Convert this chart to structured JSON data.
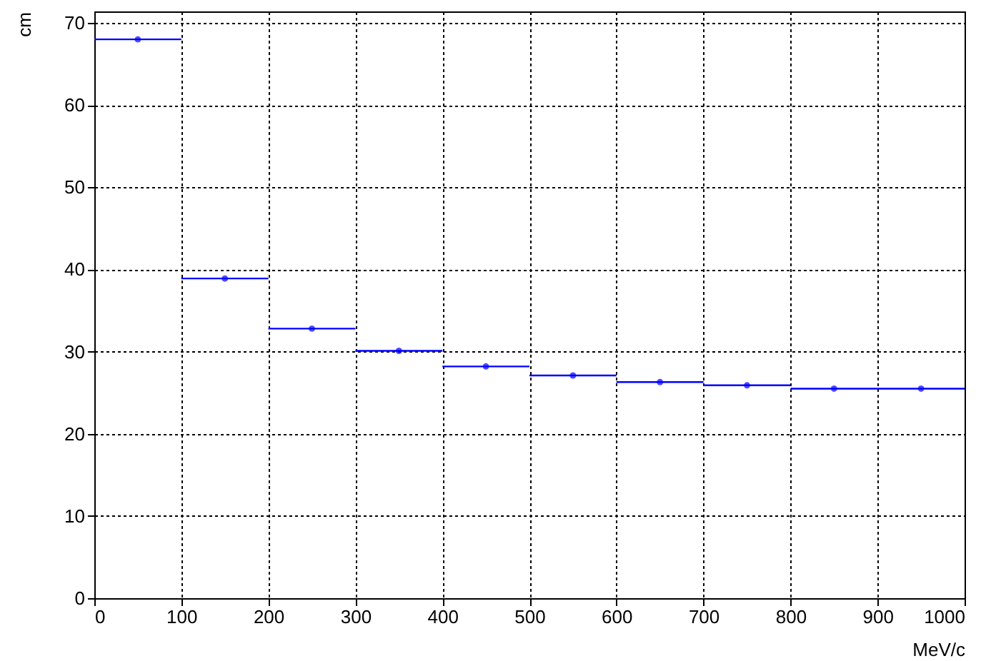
{
  "chart_data": {
    "type": "scatter",
    "xlabel": "MeV/c",
    "ylabel": "cm",
    "x": [
      50,
      150,
      250,
      350,
      450,
      550,
      650,
      750,
      850,
      950
    ],
    "values": [
      68,
      38.9,
      32.8,
      30.1,
      28.2,
      27.1,
      26.3,
      25.9,
      25.5,
      25.5
    ],
    "xerrors": [
      50,
      50,
      50,
      50,
      50,
      50,
      50,
      50,
      50,
      50
    ],
    "color": "#0000ff",
    "marker": "circle",
    "grid": true,
    "xlim": [
      0,
      1000
    ],
    "xticks": [
      0,
      100,
      200,
      300,
      400,
      500,
      600,
      700,
      800,
      900,
      1000
    ],
    "ylim": [
      0,
      71.4
    ],
    "yticks": [
      0,
      10,
      20,
      30,
      40,
      50,
      60,
      70
    ]
  }
}
